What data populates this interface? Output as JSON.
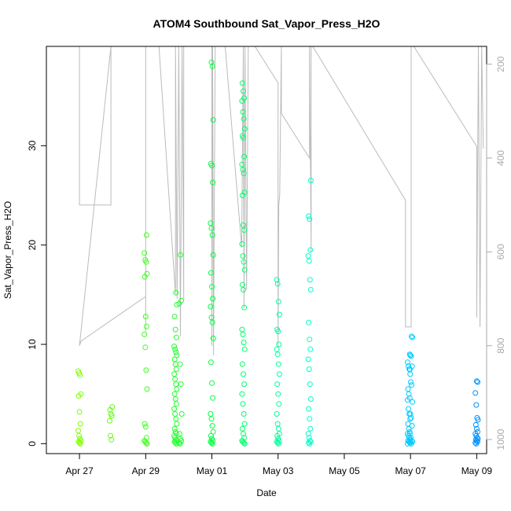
{
  "chart_data": {
    "type": "scatter",
    "title": "ATOM4 Southbound Sat_Vapor_Press_H2O",
    "xlabel": "Date",
    "ylabel": "Sat_Vapor_Press_H2O",
    "x_unit": "days from Apr 27 (0 = Apr 27)",
    "xlim": [
      -1.0,
      12.3
    ],
    "ylim": [
      -1.0,
      40.0
    ],
    "x_ticks": [
      {
        "value": 0,
        "label": "Apr 27"
      },
      {
        "value": 2,
        "label": "Apr 29"
      },
      {
        "value": 4,
        "label": "May 01"
      },
      {
        "value": 6,
        "label": "May 03"
      },
      {
        "value": 8,
        "label": "May 05"
      },
      {
        "value": 10,
        "label": "May 07"
      },
      {
        "value": 12,
        "label": "May 09"
      }
    ],
    "y_ticks": [
      0,
      10,
      20,
      30
    ],
    "right_axis": {
      "reversed": true,
      "ylim": [
        1030,
        162
      ],
      "ticks": [
        200,
        400,
        600,
        800,
        1000
      ],
      "color": "#aaaaaa"
    },
    "grid": false,
    "legend": "none",
    "marker_color_scale": [
      "#7fff00",
      "#00ff40",
      "#00ffff",
      "#0090ff"
    ],
    "series": [
      {
        "name": "Sat_Vapor_Press_H2O",
        "marker": "open-circle",
        "clusters": [
          {
            "x": 0.0,
            "values": [
              7.3,
              7.1,
              6.9,
              5.0,
              4.8,
              3.2,
              2.0,
              1.3,
              0.8,
              0.5,
              0.3,
              0.2,
              0.1,
              0.0
            ]
          },
          {
            "x": 0.95,
            "values": [
              3.7,
              3.4,
              3.0,
              2.8,
              2.3,
              0.8,
              0.4
            ]
          },
          {
            "x": 2.0,
            "values": [
              21.0,
              19.2,
              18.5,
              18.3,
              17.1,
              16.8,
              12.8,
              11.8,
              11.0,
              9.7,
              7.4,
              5.5,
              2.0,
              1.7,
              0.6,
              0.3,
              0.2,
              0.1,
              0.0
            ]
          },
          {
            "x": 2.9,
            "values": [
              15.2,
              14.0,
              12.8,
              11.5,
              10.7,
              9.8,
              9.5,
              9.2,
              8.9,
              8.5,
              8.0,
              7.5,
              7.0,
              6.5,
              6.0,
              5.5,
              5.0,
              4.5,
              4.0,
              3.5,
              3.0,
              2.5,
              2.0,
              1.5,
              1.2,
              1.0,
              0.8,
              0.6,
              0.4,
              0.3,
              0.2,
              0.1,
              0.0
            ]
          },
          {
            "x": 3.05,
            "values": [
              19.0,
              14.4,
              14.1,
              8.0,
              6.0,
              3.0,
              1.0,
              0.5,
              0.3,
              0.1,
              0.0
            ]
          },
          {
            "x": 4.0,
            "values": [
              38.4,
              38.0,
              32.6,
              28.2,
              28.0,
              26.3,
              22.2,
              21.7,
              21.0,
              19.0,
              17.2,
              15.8,
              14.6,
              13.8,
              12.7,
              12.2,
              10.6,
              8.2,
              6.1,
              4.6,
              3.0,
              2.5,
              1.8,
              1.2,
              0.8,
              0.5,
              0.3,
              0.2,
              0.1,
              0.0
            ]
          },
          {
            "x": 4.95,
            "values": [
              36.3,
              35.5,
              34.8,
              34.5,
              33.4,
              32.7,
              31.7,
              31.0,
              30.8,
              28.9,
              28.1,
              27.6,
              27.2,
              25.3,
              25.0,
              22.0,
              21.5,
              20.1,
              18.9,
              18.3,
              17.5,
              16.0,
              15.5,
              13.7,
              11.5,
              11.0,
              10.2,
              9.5,
              8.0,
              7.0,
              6.0,
              5.0,
              4.0,
              3.0,
              2.0,
              1.5,
              1.0,
              0.6,
              0.3,
              0.2,
              0.1,
              0.0
            ]
          },
          {
            "x": 6.0,
            "values": [
              16.5,
              16.1,
              14.3,
              13.0,
              11.5,
              11.3,
              10.0,
              9.5,
              9.0,
              8.0,
              7.0,
              6.0,
              5.0,
              4.0,
              3.0,
              2.0,
              1.5,
              1.0,
              0.8,
              0.5,
              0.3,
              0.2,
              0.1,
              0.0
            ]
          },
          {
            "x": 6.95,
            "values": [
              26.5,
              22.9,
              22.6,
              19.5,
              18.9,
              18.4,
              16.5,
              15.5,
              12.2,
              10.5,
              9.5,
              8.5,
              7.5,
              6.0,
              4.5,
              3.5,
              2.5,
              1.5,
              1.0,
              0.6,
              0.3,
              0.2,
              0.1,
              0.0
            ]
          },
          {
            "x": 9.95,
            "values": [
              9.0,
              8.2,
              7.8,
              7.5,
              7.0,
              5.5,
              5.0,
              4.6,
              4.4,
              3.5,
              3.0,
              2.5,
              2.0,
              1.5,
              1.2,
              1.0,
              0.8,
              0.6,
              0.4,
              0.3,
              0.2,
              0.1,
              0.0
            ]
          },
          {
            "x": 10.02,
            "values": [
              10.8,
              10.7,
              8.9,
              8.8,
              7.8,
              7.5,
              6.2,
              5.9,
              4.2,
              3.0,
              2.6,
              1.8,
              1.0,
              0.6,
              0.3,
              0.2,
              0.1,
              0.0
            ]
          },
          {
            "x": 12.0,
            "values": [
              6.3,
              6.2,
              5.1,
              3.9,
              2.6,
              2.4,
              1.9,
              1.5,
              1.2,
              1.0,
              0.8,
              0.6,
              0.5,
              0.4,
              0.3,
              0.2,
              0.1,
              0.0
            ]
          }
        ]
      }
    ],
    "pressure_trace": {
      "color": "#bbbbbb",
      "axis": "right",
      "points": [
        [
          -0.35,
          162
        ],
        [
          -0.35,
          162
        ],
        [
          0.0,
          162
        ],
        [
          0.0,
          500
        ],
        [
          0.95,
          500
        ],
        [
          0.95,
          162
        ],
        [
          0.95,
          162
        ],
        [
          0.0,
          800
        ],
        [
          0.05,
          790
        ],
        [
          2.0,
          695
        ],
        [
          2.0,
          162
        ],
        [
          2.0,
          770
        ],
        [
          2.0,
          162
        ],
        [
          2.4,
          162
        ],
        [
          2.9,
          690
        ],
        [
          2.9,
          162
        ],
        [
          2.95,
          700
        ],
        [
          3.0,
          162
        ],
        [
          3.05,
          780
        ],
        [
          3.1,
          162
        ],
        [
          3.15,
          700
        ],
        [
          3.15,
          162
        ],
        [
          4.0,
          162
        ],
        [
          4.0,
          800
        ],
        [
          4.02,
          162
        ],
        [
          4.05,
          820
        ],
        [
          4.1,
          162
        ],
        [
          4.4,
          162
        ],
        [
          4.9,
          590
        ],
        [
          4.95,
          162
        ],
        [
          4.97,
          720
        ],
        [
          5.0,
          162
        ],
        [
          5.05,
          680
        ],
        [
          5.1,
          162
        ],
        [
          5.3,
          162
        ],
        [
          6.0,
          240
        ],
        [
          6.0,
          800
        ],
        [
          6.02,
          500
        ],
        [
          6.05,
          480
        ],
        [
          6.1,
          162
        ],
        [
          6.1,
          305
        ],
        [
          6.95,
          400
        ],
        [
          6.95,
          162
        ],
        [
          7.0,
          600
        ],
        [
          7.0,
          162
        ],
        [
          7.05,
          162
        ],
        [
          9.85,
          490
        ],
        [
          9.85,
          760
        ],
        [
          10.02,
          760
        ],
        [
          10.02,
          162
        ],
        [
          10.1,
          162
        ],
        [
          12.0,
          375
        ],
        [
          12.0,
          740
        ],
        [
          12.05,
          162
        ],
        [
          12.1,
          760
        ],
        [
          12.15,
          162
        ],
        [
          12.2,
          380
        ]
      ]
    }
  }
}
